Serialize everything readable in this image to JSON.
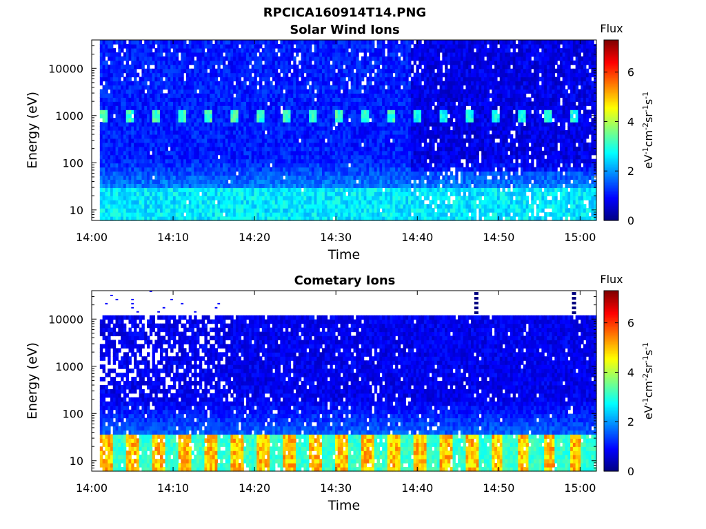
{
  "figure_title": "RPCICA160914T14.PNG",
  "chart_data": [
    {
      "type": "heatmap",
      "title": "Solar Wind Ions",
      "xlabel": "Time",
      "ylabel": "Energy (eV)",
      "x_ticks": [
        "14:00",
        "14:10",
        "14:20",
        "14:30",
        "14:40",
        "14:50",
        "15:00"
      ],
      "x_range": [
        "14:00",
        "15:02"
      ],
      "data_start": "14:01",
      "y_scale": "log",
      "y_ticks": [
        "10",
        "100",
        "1000",
        "10000"
      ],
      "y_range": [
        6,
        40000
      ],
      "colorbar": {
        "label": "Flux",
        "unit": "eV-1cm-2sr-1s-1",
        "ticks": [
          "0",
          "2",
          "4",
          "6"
        ],
        "range": [
          0,
          7.3
        ],
        "colormap": "jet"
      },
      "features": {
        "low_energy_flux_below_30eV": 2.6,
        "band_at_1000eV_peak_flux": 3.0,
        "band_period_min": 3.2,
        "background_flux": 1.1,
        "change_time": "14:39"
      }
    },
    {
      "type": "heatmap",
      "title": "Cometary Ions",
      "xlabel": "Time",
      "ylabel": "Energy (eV)",
      "x_ticks": [
        "14:00",
        "14:10",
        "14:20",
        "14:30",
        "14:40",
        "14:50",
        "15:00"
      ],
      "x_range": [
        "14:00",
        "15:02"
      ],
      "data_start": "14:01",
      "y_scale": "log",
      "y_ticks": [
        "10",
        "100",
        "1000",
        "10000"
      ],
      "y_range": [
        6,
        40000
      ],
      "colorbar": {
        "label": "Flux",
        "unit": "eV-1cm-2sr-1s-1",
        "ticks": [
          "0",
          "2",
          "4",
          "6"
        ],
        "range": [
          0,
          7.3
        ],
        "colormap": "jet"
      },
      "features": {
        "upper_energy_cutoff_eV": 11000,
        "low_energy_peak_flux": 5.2,
        "low_energy_band_eV": [
          10,
          35
        ],
        "pulse_period_min": 3.2,
        "background_flux": 0.8,
        "change_time": "14:38"
      }
    }
  ]
}
